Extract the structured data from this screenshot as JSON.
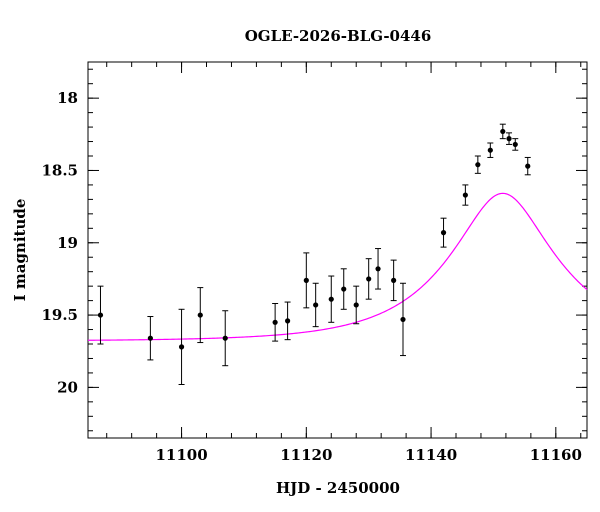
{
  "chart_data": {
    "type": "scatter",
    "title": "OGLE-2026-BLG-0446",
    "xlabel": "HJD - 2450000",
    "ylabel": "I magnitude",
    "xlim": [
      11085,
      11165
    ],
    "ylim": [
      20.35,
      17.75
    ],
    "y_inverted": true,
    "x_major_ticks": [
      11100,
      11120,
      11140,
      11160
    ],
    "x_tick_labels": [
      "11100",
      "11120",
      "11140",
      "11160"
    ],
    "x_minor_step": 4,
    "y_major_ticks": [
      18,
      18.5,
      19,
      19.5,
      20
    ],
    "y_tick_labels": [
      "18",
      "18.5",
      "19",
      "19.5",
      "20"
    ],
    "y_minor_step": 0.1,
    "grid": false,
    "model_color": "#ff00ff",
    "point_color": "#000000",
    "model": {
      "t0": 11151.5,
      "u0": 0.415,
      "tE": 16.0,
      "I_base": 19.68
    },
    "series": [
      {
        "x": [
          11087,
          11095,
          11100,
          11103,
          11107,
          11115,
          11117,
          11120,
          11121.5,
          11124,
          11126,
          11128,
          11130,
          11131.5,
          11134,
          11135.5,
          11142,
          11145.5,
          11147.5,
          11149.5,
          11151.5,
          11152.5,
          11153.5,
          11155.5
        ],
        "y": [
          19.5,
          19.66,
          19.72,
          19.5,
          19.66,
          19.55,
          19.54,
          19.26,
          19.43,
          19.39,
          19.32,
          19.43,
          19.25,
          19.18,
          19.26,
          19.53,
          18.93,
          18.67,
          18.46,
          18.36,
          18.23,
          18.28,
          18.32,
          18.47
        ],
        "yerr": [
          0.2,
          0.15,
          0.26,
          0.19,
          0.19,
          0.13,
          0.13,
          0.19,
          0.15,
          0.16,
          0.14,
          0.13,
          0.14,
          0.14,
          0.14,
          0.25,
          0.1,
          0.07,
          0.06,
          0.05,
          0.05,
          0.04,
          0.04,
          0.06
        ]
      }
    ]
  }
}
